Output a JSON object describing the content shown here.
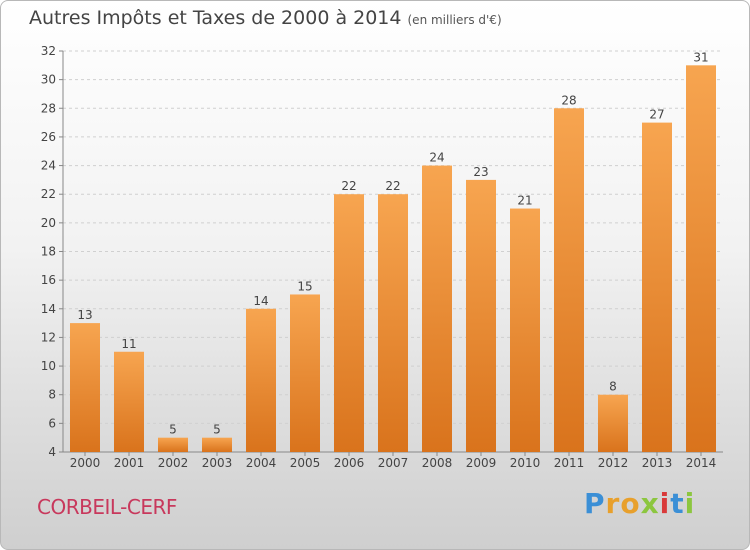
{
  "title": "Autres Impôts et Taxes de 2000 à 2014",
  "subtitle": "(en milliers d'€)",
  "place": "CORBEIL-CERF",
  "logo": {
    "letters": [
      "P",
      "r",
      "o",
      "x",
      "i",
      "t",
      "i"
    ],
    "colors": [
      "#3b8fd6",
      "#e8a02c",
      "#e8a02c",
      "#8cc63f",
      "#d93a3a",
      "#3b8fd6",
      "#8cc63f"
    ]
  },
  "colors": {
    "bar_light": "#f7a550",
    "bar_dark": "#d9731c"
  },
  "chart_data": {
    "type": "bar",
    "categories": [
      "2000",
      "2001",
      "2002",
      "2003",
      "2004",
      "2005",
      "2006",
      "2007",
      "2008",
      "2009",
      "2010",
      "2011",
      "2012",
      "2013",
      "2014"
    ],
    "values": [
      13,
      11,
      5,
      5,
      14,
      15,
      22,
      22,
      24,
      23,
      21,
      28,
      8,
      27,
      31
    ],
    "ylim": [
      4,
      32
    ],
    "yticks": [
      4,
      6,
      8,
      10,
      12,
      14,
      16,
      18,
      20,
      22,
      24,
      26,
      28,
      30,
      32
    ],
    "grid": true
  }
}
